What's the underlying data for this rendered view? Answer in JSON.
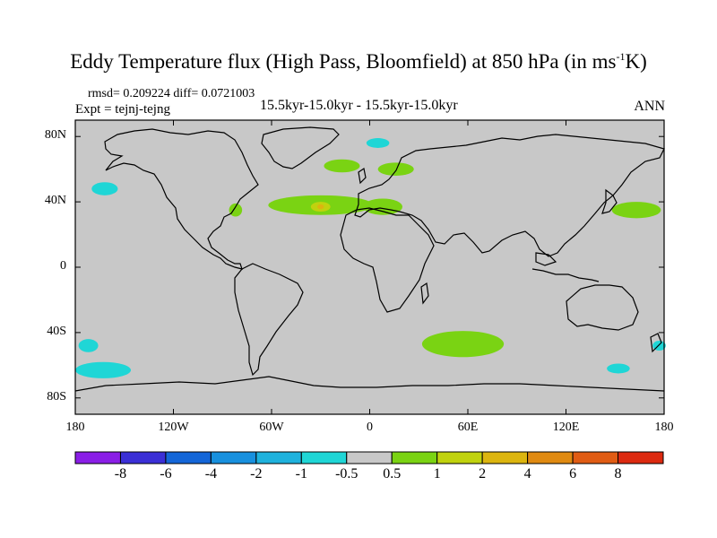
{
  "title": {
    "main": "Eddy Temperature flux (High Pass, Bloomfield) at 850 hPa (in ms",
    "sup": "-1",
    "tail": "K)"
  },
  "stats": "rmsd= 0.209224 diff= 0.0721003",
  "expt": "Expt = tejnj-tejng",
  "center_label": "15.5kyr-15.0kyr - 15.5kyr-15.0kyr",
  "season": "ANN",
  "axes": {
    "y_ticks": [
      {
        "v": 80,
        "label": "80N"
      },
      {
        "v": 40,
        "label": "40N"
      },
      {
        "v": 0,
        "label": "0"
      },
      {
        "v": -40,
        "label": "40S"
      },
      {
        "v": -80,
        "label": "80S"
      }
    ],
    "x_ticks": [
      {
        "v": -180,
        "label": "180"
      },
      {
        "v": -120,
        "label": "120W"
      },
      {
        "v": -60,
        "label": "60W"
      },
      {
        "v": 0,
        "label": "0"
      },
      {
        "v": 60,
        "label": "60E"
      },
      {
        "v": 120,
        "label": "120E"
      },
      {
        "v": 180,
        "label": "180"
      }
    ]
  },
  "colorbar": {
    "colors": [
      "#8a1ee6",
      "#3b2fd6",
      "#1466d8",
      "#1890de",
      "#1fb2dd",
      "#1fd6d6",
      "#c8c8c8",
      "#7ad313",
      "#c0d20e",
      "#dcb50f",
      "#e08a12",
      "#e05c14",
      "#dc2a10"
    ],
    "labels": [
      "-8",
      "-6",
      "-4",
      "-2",
      "-1",
      "-0.5",
      "0.5",
      "1",
      "2",
      "4",
      "6",
      "8"
    ]
  },
  "map": {
    "background": "#c8c8c8",
    "anomalies": [
      {
        "lon": -162,
        "lat": 48,
        "rx": 8,
        "ry": 4,
        "level": -1
      },
      {
        "lon": -172,
        "lat": -48,
        "rx": 6,
        "ry": 4,
        "level": -1
      },
      {
        "lon": -163,
        "lat": -63,
        "rx": 17,
        "ry": 5,
        "level": -1
      },
      {
        "lon": 5,
        "lat": 76,
        "rx": 7,
        "ry": 3,
        "level": -1
      },
      {
        "lon": 152,
        "lat": -62,
        "rx": 7,
        "ry": 3,
        "level": -1
      },
      {
        "lon": 177,
        "lat": -48,
        "rx": 4,
        "ry": 3,
        "level": -1
      },
      {
        "lon": -17,
        "lat": 62,
        "rx": 11,
        "ry": 4,
        "level": 1
      },
      {
        "lon": 16,
        "lat": 60,
        "rx": 11,
        "ry": 4,
        "level": 1
      },
      {
        "lon": -82,
        "lat": 35,
        "rx": 4,
        "ry": 4,
        "level": 1
      },
      {
        "lon": -30,
        "lat": 38,
        "rx": 32,
        "ry": 6,
        "level": 1
      },
      {
        "lon": 8,
        "lat": 37,
        "rx": 12,
        "ry": 5,
        "level": 1
      },
      {
        "lon": -30,
        "lat": 37,
        "rx": 6,
        "ry": 3,
        "level": 2
      },
      {
        "lon": -30,
        "lat": 37,
        "rx": 2,
        "ry": 1.5,
        "level": 4
      },
      {
        "lon": 163,
        "lat": 35,
        "rx": 15,
        "ry": 5,
        "level": 1
      },
      {
        "lon": 57,
        "lat": -47,
        "rx": 25,
        "ry": 8,
        "level": 1
      }
    ]
  }
}
